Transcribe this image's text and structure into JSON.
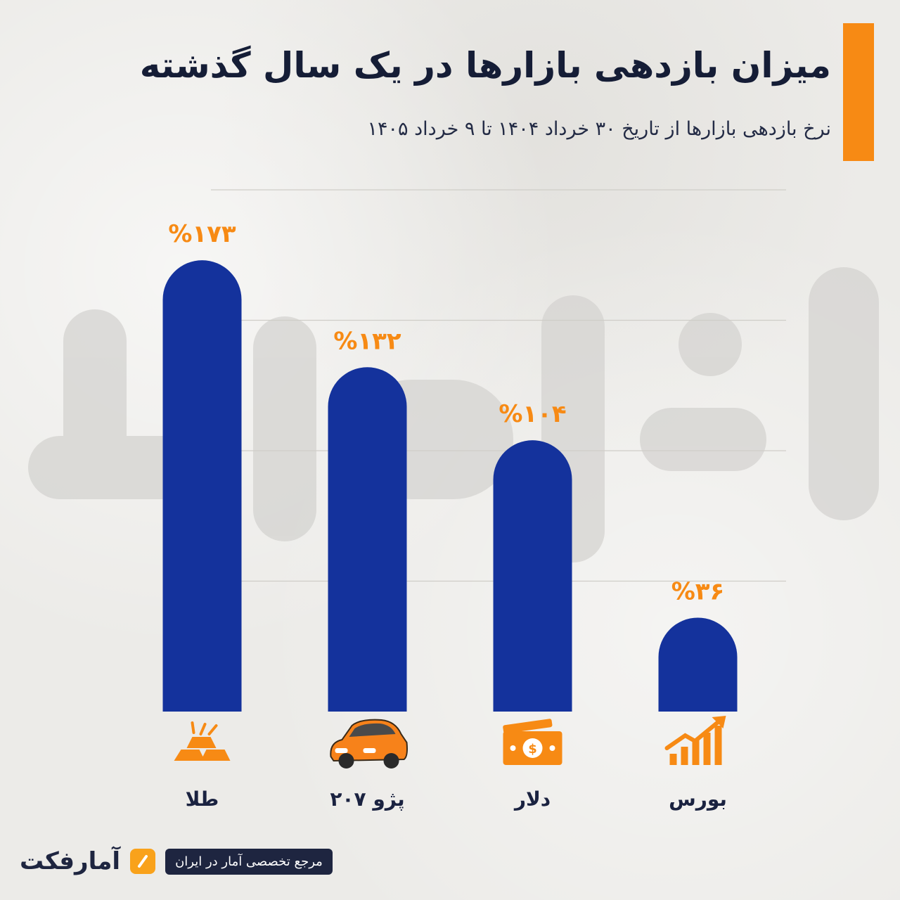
{
  "header": {
    "title": "میزان بازدهی بازارها در یک سال گذشته",
    "subtitle": "نرخ بازدهی بازارها از تاریخ ۳۰ خرداد ۱۴۰۴ تا ۹ خرداد ۱۴۰۵",
    "accent_color": "#f78a14"
  },
  "chart_data": {
    "type": "bar",
    "title": "میزان بازدهی بازارها در یک سال گذشته",
    "subtitle": "نرخ بازدهی بازارها از تاریخ ۳۰ خرداد ۱۴۰۴ تا ۹ خرداد ۱۴۰۵",
    "categories": [
      "طلا",
      "پژو ۲۰۷",
      "دلار",
      "بورس"
    ],
    "values": [
      173,
      132,
      104,
      36
    ],
    "data_labels": [
      "%۱۷۳",
      "%۱۳۲",
      "%۱۰۴",
      "%۳۶"
    ],
    "icons": [
      "gold-bars-icon",
      "car-icon",
      "banknote-icon",
      "stock-growth-icon"
    ],
    "ylim": [
      0,
      200
    ],
    "gridlines": [
      50,
      100,
      150,
      200
    ],
    "grid": true,
    "legend": "none",
    "xlabel": "",
    "ylabel": "",
    "bar_color": "#14329c",
    "label_color": "#f78a14"
  },
  "footer": {
    "brand": "آمارفکت",
    "tagline": "مرجع تخصصی آمار در ایران"
  },
  "watermark": {
    "text": "آمارفکت"
  }
}
